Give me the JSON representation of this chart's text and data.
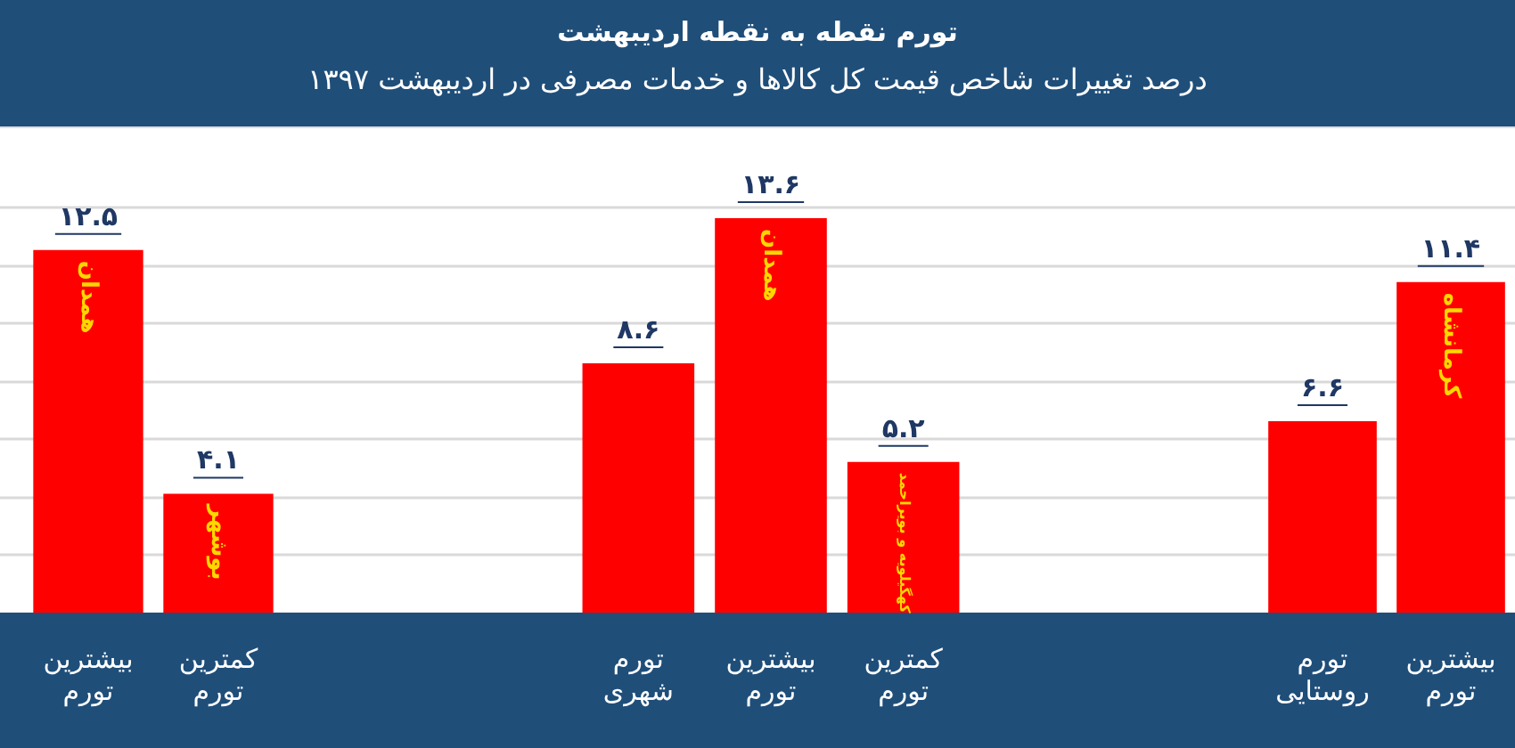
{
  "chart_data": [
    {
      "type": "other",
      "title": "تورم نقطه به نقطه اردیبهشت",
      "subtitle": "درصد تغییرات شاخص قیمت کل کالاها و خدمات مصرفی در اردیبهشت ۱۳۹۷"
    },
    {
      "type": "bar",
      "categories": [
        "بیشترین تورم",
        "کمترین تورم"
      ],
      "values": [
        12.5,
        4.1
      ],
      "value_labels": [
        "۱۲.۵",
        "۴.۱"
      ],
      "color": "#ff0000",
      "ylim": [
        0,
        14
      ],
      "tick_labels": "x",
      "grid": "y",
      "annotations": [
        {
          "text": "همدان",
          "x": "بیشترین تورم",
          "y": 12.5
        },
        {
          "text": "بوشهر",
          "x": "کمترین تورم",
          "y": 4.1
        }
      ]
    },
    {
      "type": "bar",
      "categories": [
        "تورم شهری",
        "بیشترین تورم",
        "کمترین تورم"
      ],
      "values": [
        8.6,
        13.6,
        5.2
      ],
      "value_labels": [
        "۸.۶",
        "۱۳.۶",
        "۵.۲"
      ],
      "color": "#ff0000",
      "ylim": [
        0,
        14
      ],
      "tick_labels": "x",
      "grid": "y",
      "annotations": [
        {
          "text": "همدان",
          "x": "بیشترین تورم",
          "y": 13.6
        },
        {
          "text": "کهگیلویه و بویراحمد",
          "x": "کمترین تورم",
          "y": 5.2
        }
      ]
    },
    {
      "type": "bar",
      "categories": [
        "تورم روستایی",
        "بیشترین تورم"
      ],
      "values": [
        6.6,
        11.4
      ],
      "value_labels": [
        "۶.۶",
        "۱۱.۴"
      ],
      "color": "#ff0000",
      "ylim": [
        0,
        14
      ],
      "tick_labels": "x",
      "grid": "y",
      "annotations": [
        {
          "text": "کرمانشاه",
          "x": "بیشترین تورم",
          "y": 11.4
        }
      ]
    }
  ]
}
